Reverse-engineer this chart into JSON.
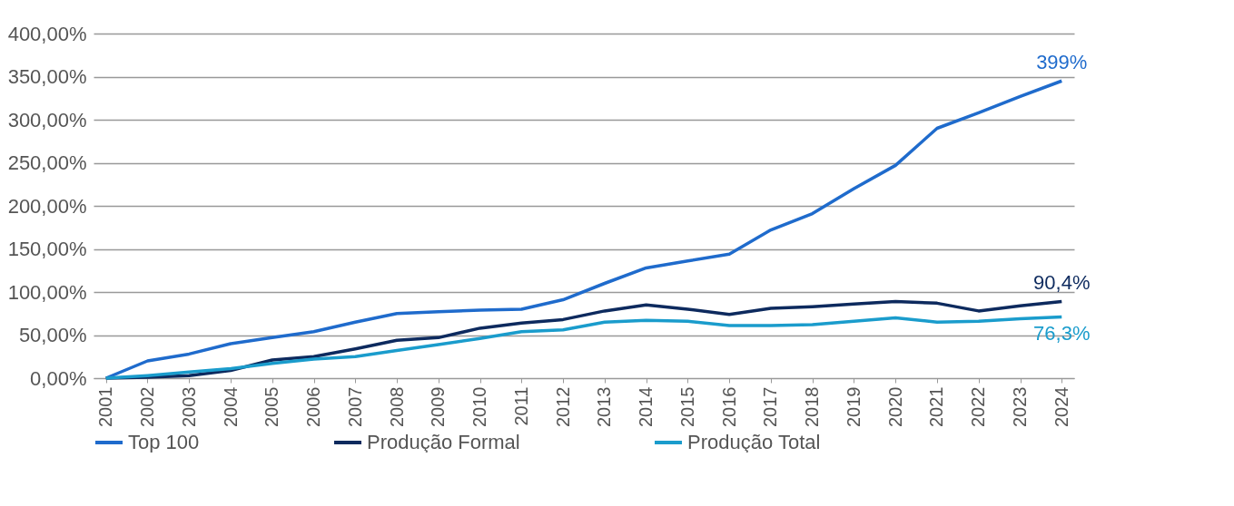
{
  "chart_data": {
    "type": "line",
    "categories": [
      "2001",
      "2002",
      "2003",
      "2004",
      "2005",
      "2006",
      "2007",
      "2008",
      "2009",
      "2010",
      "2011",
      "2012",
      "2013",
      "2014",
      "2015",
      "2016",
      "2017",
      "2018",
      "2019",
      "2020",
      "2021",
      "2022",
      "2023",
      "2024"
    ],
    "series": [
      {
        "name": "Top 100",
        "color": "#1f6bcc",
        "values": [
          0,
          20,
          28,
          40,
          47,
          54,
          65,
          75,
          77,
          79,
          80,
          91,
          110,
          128,
          136,
          144,
          172,
          191,
          220,
          247,
          290,
          308,
          327,
          345
        ]
      },
      {
        "name": "Produção Formal",
        "color": "#0d2a5e",
        "values": [
          0,
          1,
          3,
          9,
          21,
          25,
          34,
          44,
          47,
          58,
          64,
          68,
          78,
          85,
          80,
          74,
          81,
          83,
          86,
          89,
          87,
          78,
          84,
          89
        ]
      },
      {
        "name": "Produção Total",
        "color": "#1a9ccc",
        "values": [
          0,
          3,
          7,
          11,
          17,
          22,
          25,
          32,
          39,
          46,
          54,
          56,
          65,
          67,
          66,
          61,
          61,
          62,
          66,
          70,
          65,
          66,
          69,
          71
        ]
      }
    ],
    "ylim": [
      0,
      400
    ],
    "yticks": [
      {
        "value": 0,
        "label": "0,00%"
      },
      {
        "value": 50,
        "label": "50,00%"
      },
      {
        "value": 100,
        "label": "100,00%"
      },
      {
        "value": 150,
        "label": "150,00%"
      },
      {
        "value": 200,
        "label": "200,00%"
      },
      {
        "value": 250,
        "label": "250,00%"
      },
      {
        "value": 300,
        "label": "300,00%"
      },
      {
        "value": 350,
        "label": "350,00%"
      },
      {
        "value": 400,
        "label": "400,00%"
      }
    ],
    "grid": "y",
    "legend": "bottom",
    "line_style": "solid",
    "marker": "none",
    "annotations": [
      {
        "text": "399%",
        "x": "2024",
        "y": 345
      },
      {
        "text": "90,4%",
        "x": "2024",
        "y": 89
      },
      {
        "text": "76,3%",
        "x": "2024",
        "y": 71
      }
    ]
  }
}
